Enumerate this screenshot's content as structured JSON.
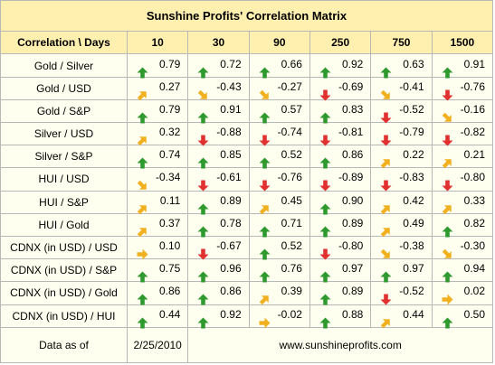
{
  "title": "Sunshine Profits' Correlation Matrix",
  "header": {
    "corner": "Correlation \\ Days",
    "periods": [
      "10",
      "30",
      "90",
      "250",
      "750",
      "1500"
    ]
  },
  "rows": [
    {
      "label": "Gold / Silver",
      "cells": [
        {
          "value": "0.79",
          "arrow": "up-arrow-icon"
        },
        {
          "value": "0.72",
          "arrow": "up-arrow-icon"
        },
        {
          "value": "0.66",
          "arrow": "up-arrow-icon"
        },
        {
          "value": "0.92",
          "arrow": "up-arrow-icon"
        },
        {
          "value": "0.63",
          "arrow": "up-arrow-icon"
        },
        {
          "value": "0.91",
          "arrow": "up-arrow-icon"
        }
      ]
    },
    {
      "label": "Gold / USD",
      "cells": [
        {
          "value": "0.27",
          "arrow": "up-right-arrow-icon"
        },
        {
          "value": "-0.43",
          "arrow": "down-right-arrow-icon"
        },
        {
          "value": "-0.27",
          "arrow": "down-right-arrow-icon"
        },
        {
          "value": "-0.69",
          "arrow": "down-arrow-icon"
        },
        {
          "value": "-0.41",
          "arrow": "down-right-arrow-icon"
        },
        {
          "value": "-0.76",
          "arrow": "down-arrow-icon"
        }
      ]
    },
    {
      "label": "Gold / S&P",
      "cells": [
        {
          "value": "0.79",
          "arrow": "up-arrow-icon"
        },
        {
          "value": "0.91",
          "arrow": "up-arrow-icon"
        },
        {
          "value": "0.57",
          "arrow": "up-arrow-icon"
        },
        {
          "value": "0.83",
          "arrow": "up-arrow-icon"
        },
        {
          "value": "-0.52",
          "arrow": "down-arrow-icon"
        },
        {
          "value": "-0.16",
          "arrow": "down-right-arrow-icon"
        }
      ]
    },
    {
      "label": "Silver / USD",
      "cells": [
        {
          "value": "0.32",
          "arrow": "up-right-arrow-icon"
        },
        {
          "value": "-0.88",
          "arrow": "down-arrow-icon"
        },
        {
          "value": "-0.74",
          "arrow": "down-arrow-icon"
        },
        {
          "value": "-0.81",
          "arrow": "down-arrow-icon"
        },
        {
          "value": "-0.79",
          "arrow": "down-arrow-icon"
        },
        {
          "value": "-0.82",
          "arrow": "down-arrow-icon"
        }
      ]
    },
    {
      "label": "Silver / S&P",
      "cells": [
        {
          "value": "0.74",
          "arrow": "up-arrow-icon"
        },
        {
          "value": "0.85",
          "arrow": "up-arrow-icon"
        },
        {
          "value": "0.52",
          "arrow": "up-arrow-icon"
        },
        {
          "value": "0.86",
          "arrow": "up-arrow-icon"
        },
        {
          "value": "0.22",
          "arrow": "up-right-arrow-icon"
        },
        {
          "value": "0.21",
          "arrow": "up-right-arrow-icon"
        }
      ]
    },
    {
      "label": "HUI / USD",
      "cells": [
        {
          "value": "-0.34",
          "arrow": "down-right-arrow-icon"
        },
        {
          "value": "-0.61",
          "arrow": "down-arrow-icon"
        },
        {
          "value": "-0.76",
          "arrow": "down-arrow-icon"
        },
        {
          "value": "-0.89",
          "arrow": "down-arrow-icon"
        },
        {
          "value": "-0.83",
          "arrow": "down-arrow-icon"
        },
        {
          "value": "-0.80",
          "arrow": "down-arrow-icon"
        }
      ]
    },
    {
      "label": "HUI / S&P",
      "cells": [
        {
          "value": "0.11",
          "arrow": "up-right-arrow-icon"
        },
        {
          "value": "0.89",
          "arrow": "up-arrow-icon"
        },
        {
          "value": "0.45",
          "arrow": "up-right-arrow-icon"
        },
        {
          "value": "0.90",
          "arrow": "up-arrow-icon"
        },
        {
          "value": "0.42",
          "arrow": "up-right-arrow-icon"
        },
        {
          "value": "0.33",
          "arrow": "up-right-arrow-icon"
        }
      ]
    },
    {
      "label": "HUI / Gold",
      "cells": [
        {
          "value": "0.37",
          "arrow": "up-right-arrow-icon"
        },
        {
          "value": "0.78",
          "arrow": "up-arrow-icon"
        },
        {
          "value": "0.71",
          "arrow": "up-arrow-icon"
        },
        {
          "value": "0.89",
          "arrow": "up-arrow-icon"
        },
        {
          "value": "0.49",
          "arrow": "up-right-arrow-icon"
        },
        {
          "value": "0.82",
          "arrow": "up-arrow-icon"
        }
      ]
    },
    {
      "label": "CDNX (in USD) / USD",
      "cells": [
        {
          "value": "0.10",
          "arrow": "right-arrow-icon"
        },
        {
          "value": "-0.67",
          "arrow": "down-arrow-icon"
        },
        {
          "value": "0.52",
          "arrow": "up-arrow-icon"
        },
        {
          "value": "-0.80",
          "arrow": "down-arrow-icon"
        },
        {
          "value": "-0.38",
          "arrow": "down-right-arrow-icon"
        },
        {
          "value": "-0.30",
          "arrow": "down-right-arrow-icon"
        }
      ]
    },
    {
      "label": "CDNX (in USD) / S&P",
      "cells": [
        {
          "value": "0.75",
          "arrow": "up-arrow-icon"
        },
        {
          "value": "0.96",
          "arrow": "up-arrow-icon"
        },
        {
          "value": "0.76",
          "arrow": "up-arrow-icon"
        },
        {
          "value": "0.97",
          "arrow": "up-arrow-icon"
        },
        {
          "value": "0.97",
          "arrow": "up-arrow-icon"
        },
        {
          "value": "0.94",
          "arrow": "up-arrow-icon"
        }
      ]
    },
    {
      "label": "CDNX (in USD) / Gold",
      "cells": [
        {
          "value": "0.86",
          "arrow": "up-arrow-icon"
        },
        {
          "value": "0.86",
          "arrow": "up-arrow-icon"
        },
        {
          "value": "0.39",
          "arrow": "up-right-arrow-icon"
        },
        {
          "value": "0.89",
          "arrow": "up-arrow-icon"
        },
        {
          "value": "-0.52",
          "arrow": "down-arrow-icon"
        },
        {
          "value": "0.02",
          "arrow": "right-arrow-icon"
        }
      ]
    },
    {
      "label": "CDNX (in USD) / HUI",
      "cells": [
        {
          "value": "0.44",
          "arrow": "up-arrow-icon"
        },
        {
          "value": "0.92",
          "arrow": "up-arrow-icon"
        },
        {
          "value": "-0.02",
          "arrow": "right-arrow-icon"
        },
        {
          "value": "0.88",
          "arrow": "up-arrow-icon"
        },
        {
          "value": "0.44",
          "arrow": "up-right-arrow-icon"
        },
        {
          "value": "0.50",
          "arrow": "up-arrow-icon"
        }
      ]
    }
  ],
  "footer": {
    "label": "Data as of",
    "date": "2/25/2010",
    "site": "www.sunshineprofits.com"
  },
  "colors": {
    "header_bg": "#fff0b0",
    "table_bg": "#fffff0",
    "arrow_up": "#2e9a2e",
    "arrow_down": "#e03030",
    "arrow_diag": "#f0b020"
  }
}
